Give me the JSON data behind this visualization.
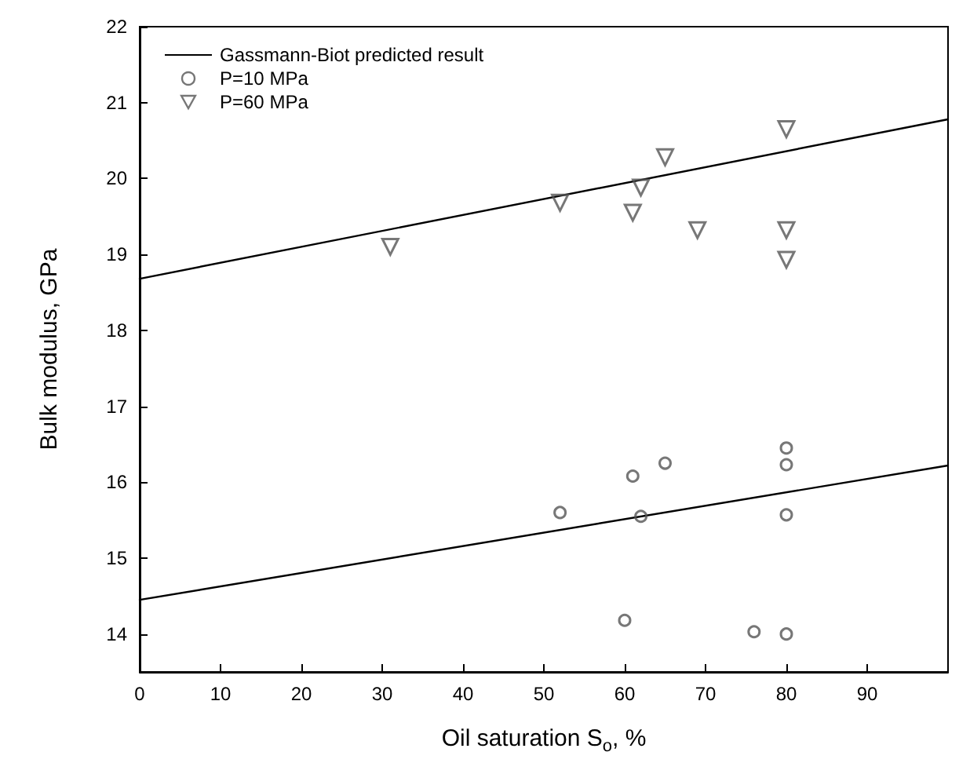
{
  "chart_data": {
    "type": "scatter",
    "xlabel": "Oil saturation S$_{o}$, %",
    "ylabel": "Bulk modulus, GPa",
    "xlim": [
      0,
      100
    ],
    "xticks": [
      0,
      10,
      20,
      30,
      40,
      50,
      60,
      70,
      80,
      90
    ],
    "ylim": [
      13.5,
      22
    ],
    "yticks": [
      14,
      15,
      16,
      17,
      18,
      19,
      20,
      21,
      22
    ],
    "legend": "top left",
    "grid": false,
    "series": [
      {
        "name": "Gassmann-Biot predicted result",
        "type": "line",
        "color": "#000000",
        "marker": "none",
        "line_style": "solid",
        "x": [
          0,
          100
        ],
        "values": [
          14.45,
          16.22
        ]
      },
      {
        "type": "line",
        "color": "#000000",
        "marker": "none",
        "line_style": "solid",
        "x": [
          0,
          100
        ],
        "values": [
          18.68,
          20.78
        ]
      },
      {
        "name": "P=10 MPa",
        "color": "#555555",
        "marker": "circle",
        "x": [
          52,
          60,
          61,
          62,
          65,
          76,
          80,
          80,
          80,
          80
        ],
        "values": [
          15.6,
          14.18,
          16.08,
          15.55,
          16.25,
          14.03,
          16.45,
          16.23,
          15.57,
          14.0
        ]
      },
      {
        "name": "P=60 MPa",
        "color": "#555555",
        "marker": "triangle",
        "x": [
          31,
          52,
          61,
          62,
          65,
          69,
          80,
          80,
          80
        ],
        "values": [
          19.1,
          19.68,
          19.55,
          19.88,
          20.28,
          19.32,
          20.65,
          19.32,
          18.93
        ]
      }
    ]
  }
}
